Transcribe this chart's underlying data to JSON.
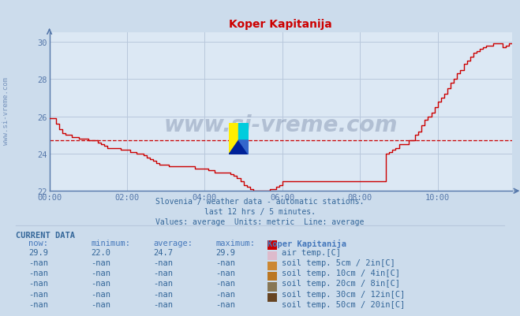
{
  "title": "Koper Kapitanija",
  "title_color": "#cc0000",
  "bg_color": "#ccdcec",
  "plot_bg_color": "#dce8f4",
  "grid_color": "#b8c8dc",
  "axis_color": "#5577aa",
  "text_color": "#336699",
  "subtitle_lines": [
    "Slovenia / weather data - automatic stations.",
    "last 12 hrs / 5 minutes.",
    "Values: average  Units: metric  Line: average"
  ],
  "ylim": [
    22,
    30.5
  ],
  "yticks": [
    22,
    24,
    26,
    28,
    30
  ],
  "xlim": [
    0,
    143
  ],
  "xticks": [
    0,
    24,
    48,
    72,
    96,
    120
  ],
  "xticklabels": [
    "00:00",
    "02:00",
    "04:00",
    "06:00",
    "08:00",
    "10:00"
  ],
  "average_value": 24.7,
  "line_color": "#cc0000",
  "watermark_text": "www.si-vreme.com",
  "watermark_color": "#1a3060",
  "watermark_alpha": 0.22,
  "sidebar_text": "www.si-vreme.com",
  "current_data_label": "CURRENT DATA",
  "col_headers": [
    "    now:",
    " minimum:",
    " average:",
    " maximum:",
    "   Koper Kapitanija"
  ],
  "rows": [
    {
      "values": [
        "   29.9",
        "   22.0",
        "   24.7",
        "   29.9"
      ],
      "label": "air temp.[C]",
      "color": "#cc0000"
    },
    {
      "values": [
        "   -nan",
        "   -nan",
        "   -nan",
        "   -nan"
      ],
      "label": "soil temp. 5cm / 2in[C]",
      "color": "#ddbbcc"
    },
    {
      "values": [
        "   -nan",
        "   -nan",
        "   -nan",
        "   -nan"
      ],
      "label": "soil temp. 10cm / 4in[C]",
      "color": "#cc8833"
    },
    {
      "values": [
        "   -nan",
        "   -nan",
        "   -nan",
        "   -nan"
      ],
      "label": "soil temp. 20cm / 8in[C]",
      "color": "#bb7722"
    },
    {
      "values": [
        "   -nan",
        "   -nan",
        "   -nan",
        "   -nan"
      ],
      "label": "soil temp. 30cm / 12in[C]",
      "color": "#887755"
    },
    {
      "values": [
        "   -nan",
        "   -nan",
        "   -nan",
        "   -nan"
      ],
      "label": "soil temp. 50cm / 20in[C]",
      "color": "#664422"
    }
  ],
  "air_temp_data": [
    [
      0,
      25.9
    ],
    [
      1,
      25.9
    ],
    [
      2,
      25.6
    ],
    [
      3,
      25.3
    ],
    [
      4,
      25.1
    ],
    [
      5,
      25.0
    ],
    [
      6,
      25.0
    ],
    [
      7,
      24.9
    ],
    [
      8,
      24.9
    ],
    [
      9,
      24.8
    ],
    [
      10,
      24.8
    ],
    [
      11,
      24.8
    ],
    [
      12,
      24.7
    ],
    [
      13,
      24.7
    ],
    [
      14,
      24.7
    ],
    [
      15,
      24.6
    ],
    [
      16,
      24.5
    ],
    [
      17,
      24.4
    ],
    [
      18,
      24.3
    ],
    [
      19,
      24.3
    ],
    [
      20,
      24.3
    ],
    [
      21,
      24.3
    ],
    [
      22,
      24.2
    ],
    [
      23,
      24.2
    ],
    [
      24,
      24.2
    ],
    [
      25,
      24.1
    ],
    [
      26,
      24.1
    ],
    [
      27,
      24.0
    ],
    [
      28,
      24.0
    ],
    [
      29,
      23.9
    ],
    [
      30,
      23.8
    ],
    [
      31,
      23.7
    ],
    [
      32,
      23.6
    ],
    [
      33,
      23.5
    ],
    [
      34,
      23.4
    ],
    [
      35,
      23.4
    ],
    [
      36,
      23.4
    ],
    [
      37,
      23.3
    ],
    [
      38,
      23.3
    ],
    [
      39,
      23.3
    ],
    [
      40,
      23.3
    ],
    [
      41,
      23.3
    ],
    [
      42,
      23.3
    ],
    [
      43,
      23.3
    ],
    [
      44,
      23.3
    ],
    [
      45,
      23.2
    ],
    [
      46,
      23.2
    ],
    [
      47,
      23.2
    ],
    [
      48,
      23.2
    ],
    [
      49,
      23.1
    ],
    [
      50,
      23.1
    ],
    [
      51,
      23.0
    ],
    [
      52,
      23.0
    ],
    [
      53,
      23.0
    ],
    [
      54,
      23.0
    ],
    [
      55,
      23.0
    ],
    [
      56,
      22.9
    ],
    [
      57,
      22.8
    ],
    [
      58,
      22.7
    ],
    [
      59,
      22.5
    ],
    [
      60,
      22.3
    ],
    [
      61,
      22.2
    ],
    [
      62,
      22.1
    ],
    [
      63,
      22.0
    ],
    [
      64,
      22.0
    ],
    [
      65,
      22.0
    ],
    [
      66,
      22.0
    ],
    [
      67,
      22.0
    ],
    [
      68,
      22.1
    ],
    [
      69,
      22.1
    ],
    [
      70,
      22.2
    ],
    [
      71,
      22.3
    ],
    [
      72,
      22.5
    ],
    [
      73,
      22.5
    ],
    [
      74,
      22.5
    ],
    [
      75,
      22.5
    ],
    [
      76,
      22.5
    ],
    [
      77,
      22.5
    ],
    [
      78,
      22.5
    ],
    [
      79,
      22.5
    ],
    [
      80,
      22.5
    ],
    [
      81,
      22.5
    ],
    [
      82,
      22.5
    ],
    [
      83,
      22.5
    ],
    [
      84,
      22.5
    ],
    [
      85,
      22.5
    ],
    [
      86,
      22.5
    ],
    [
      87,
      22.5
    ],
    [
      88,
      22.5
    ],
    [
      89,
      22.5
    ],
    [
      90,
      22.5
    ],
    [
      91,
      22.5
    ],
    [
      92,
      22.5
    ],
    [
      93,
      22.5
    ],
    [
      94,
      22.5
    ],
    [
      95,
      22.5
    ],
    [
      96,
      22.5
    ],
    [
      97,
      22.5
    ],
    [
      98,
      22.5
    ],
    [
      99,
      22.5
    ],
    [
      100,
      22.5
    ],
    [
      101,
      22.5
    ],
    [
      102,
      22.5
    ],
    [
      103,
      22.5
    ],
    [
      104,
      24.0
    ],
    [
      105,
      24.1
    ],
    [
      106,
      24.2
    ],
    [
      107,
      24.3
    ],
    [
      108,
      24.5
    ],
    [
      109,
      24.5
    ],
    [
      110,
      24.5
    ],
    [
      111,
      24.7
    ],
    [
      112,
      24.7
    ],
    [
      113,
      25.0
    ],
    [
      114,
      25.2
    ],
    [
      115,
      25.5
    ],
    [
      116,
      25.8
    ],
    [
      117,
      26.0
    ],
    [
      118,
      26.2
    ],
    [
      119,
      26.5
    ],
    [
      120,
      26.8
    ],
    [
      121,
      27.0
    ],
    [
      122,
      27.2
    ],
    [
      123,
      27.5
    ],
    [
      124,
      27.8
    ],
    [
      125,
      28.0
    ],
    [
      126,
      28.3
    ],
    [
      127,
      28.5
    ],
    [
      128,
      28.8
    ],
    [
      129,
      29.0
    ],
    [
      130,
      29.2
    ],
    [
      131,
      29.4
    ],
    [
      132,
      29.5
    ],
    [
      133,
      29.6
    ],
    [
      134,
      29.7
    ],
    [
      135,
      29.8
    ],
    [
      136,
      29.8
    ],
    [
      137,
      29.9
    ],
    [
      138,
      29.9
    ],
    [
      139,
      29.9
    ],
    [
      140,
      29.7
    ],
    [
      141,
      29.8
    ],
    [
      142,
      29.9
    ],
    [
      143,
      29.9
    ]
  ]
}
